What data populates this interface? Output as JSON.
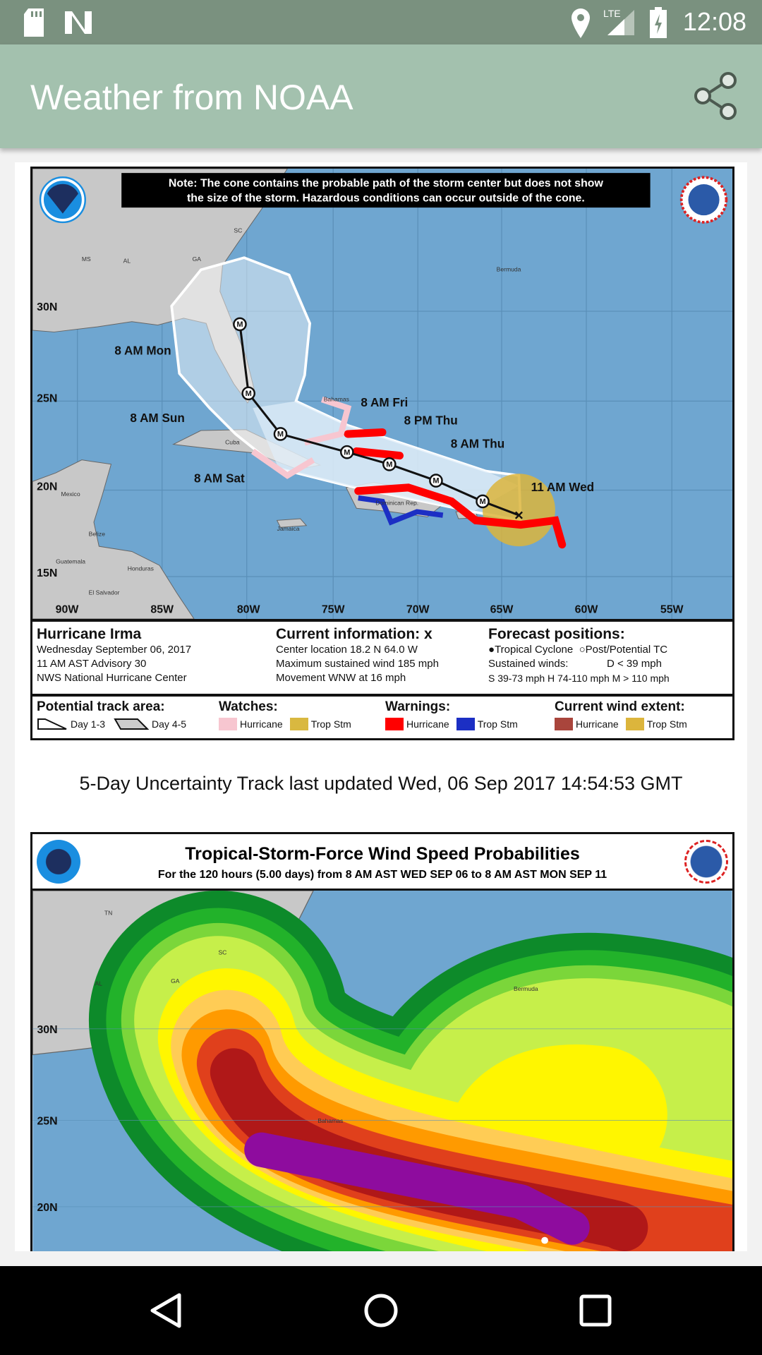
{
  "status_bar": {
    "time": "12:08",
    "icons": [
      "sd-card-icon",
      "n-notification-icon",
      "location-icon",
      "lte-signal-icon",
      "battery-charging-icon"
    ]
  },
  "toolbar": {
    "title": "Weather from NOAA",
    "share_icon": "share-icon"
  },
  "cone_map": {
    "note_line1": "Note: The cone contains the probable path of the storm center but does not show",
    "note_line2": "the size of the storm. Hazardous conditions can occur outside of the cone.",
    "lat_labels": [
      "30N",
      "25N",
      "20N",
      "15N"
    ],
    "lon_labels": [
      "90W",
      "85W",
      "80W",
      "75W",
      "70W",
      "65W",
      "60W",
      "55W"
    ],
    "place_labels": [
      "MS",
      "AL",
      "GA",
      "SC",
      "Bermuda",
      "Bahamas",
      "Cuba",
      "Mexico",
      "Jamaica",
      "Belize",
      "Guatemala",
      "Honduras",
      "El Salvador",
      "Dominican Rep."
    ],
    "forecast_labels": [
      "8 AM Mon",
      "8 AM Sun",
      "8 AM Sat",
      "8 AM Fri",
      "8 PM Thu",
      "8 AM Thu",
      "11 AM Wed"
    ],
    "track_marker": "M",
    "info": {
      "storm_name": "Hurricane Irma",
      "date": "Wednesday September 06, 2017",
      "advisory": "11 AM AST Advisory 30",
      "center": "NWS National Hurricane Center",
      "current_title": "Current information: x",
      "location": "Center location 18.2 N 64.0 W",
      "max_wind": "Maximum sustained wind 185 mph",
      "movement": "Movement WNW at 16 mph",
      "forecast_title": "Forecast positions:",
      "tropical_cyclone": "Tropical Cyclone",
      "post_potential": "Post/Potential TC",
      "sustained": "Sustained winds:",
      "d_level": "D < 39 mph",
      "levels": "S 39-73 mph  H 74-110 mph  M > 110 mph"
    },
    "legend": {
      "track_title": "Potential track area:",
      "day13": "Day 1-3",
      "day45": "Day 4-5",
      "watches_title": "Watches:",
      "warnings_title": "Warnings:",
      "wind_title": "Current wind extent:",
      "hurricane": "Hurricane",
      "trop_stm": "Trop Stm",
      "colors": {
        "watch_hurricane": "#f7c6d0",
        "watch_trop": "#d9b840",
        "warn_hurricane": "#ff0000",
        "warn_trop": "#1c2fc4",
        "wind_hurricane": "#a9453c",
        "wind_trop": "#dcb53c"
      }
    }
  },
  "caption": "5-Day Uncertainty Track last updated Wed, 06 Sep 2017 14:54:53 GMT",
  "wind_map": {
    "title": "Tropical-Storm-Force Wind Speed Probabilities",
    "subtitle": "For the 120 hours (5.00 days) from 8 AM AST WED SEP 06 to 8 AM AST MON SEP 11",
    "lat_labels": [
      "30N",
      "25N",
      "20N"
    ],
    "place_labels": [
      "TN",
      "AL",
      "GA",
      "SC",
      "Bermuda",
      "Bahamas"
    ]
  },
  "colors": {
    "status_bar": "#7a917f",
    "toolbar": "#a3c1ae",
    "ocean": "#6fa6d0",
    "land": "#c8c8c8"
  },
  "nav": {
    "icons": [
      "back-icon",
      "home-icon",
      "recents-icon"
    ]
  }
}
